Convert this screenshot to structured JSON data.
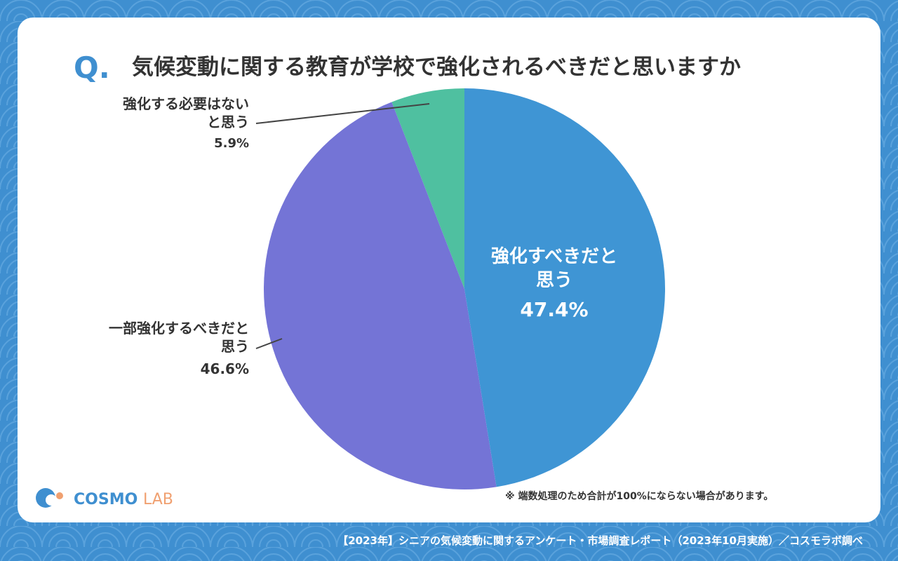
{
  "header": {
    "q_mark": "Q.",
    "question": "気候変動に関する教育が学校で強化されるべきだと思いますか"
  },
  "chart_data": {
    "type": "pie",
    "categories": [
      "強化すべきだと思う",
      "一部強化するべきだと思う",
      "強化する必要はないと思う"
    ],
    "values": [
      47.4,
      46.6,
      5.9
    ],
    "value_labels": [
      "47.4%",
      "46.6%",
      "5.9%"
    ],
    "colors": [
      "#3f95d4",
      "#7474d6",
      "#4fc0a0"
    ]
  },
  "note": "※ 端数処理のため合計が100%にならない場合があります。",
  "logo": {
    "main": "COSMO",
    "sub": "LAB"
  },
  "footer": "【2023年】シニアの気候変動に関するアンケート・市場調査レポート（2023年10月実施）／コスモラボ調べ"
}
